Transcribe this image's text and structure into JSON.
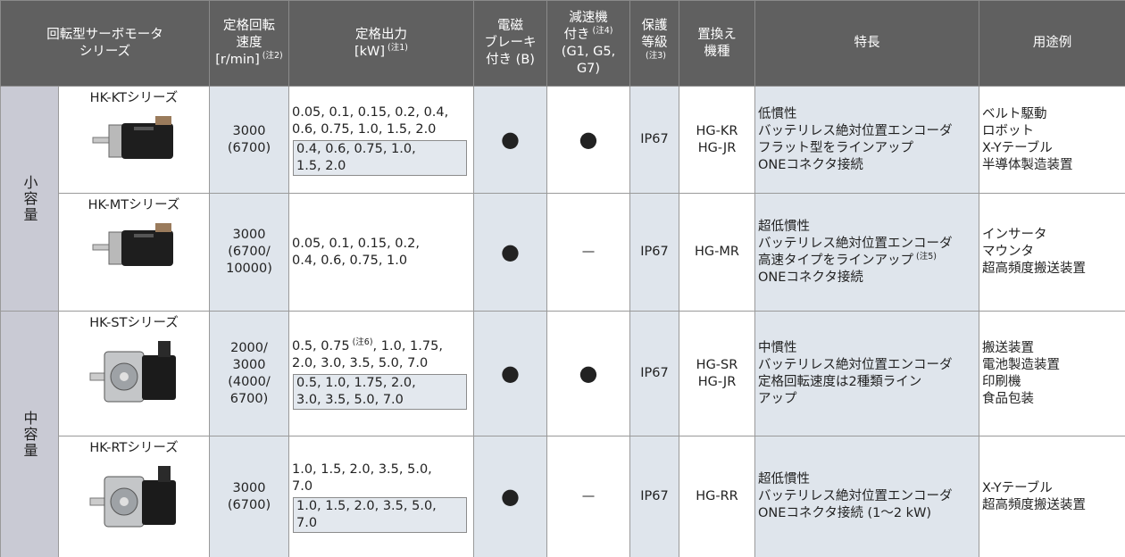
{
  "header": [
    {
      "lines": [
        "回転型サーボモータ",
        "シリーズ"
      ]
    },
    {
      "lines": [
        "定格回転",
        "速度",
        [
          "[r/min]",
          {
            "note": "(注2)"
          }
        ]
      ]
    },
    {
      "lines": [
        "定格出力",
        [
          "[kW]",
          {
            "note": "(注1)"
          }
        ]
      ]
    },
    {
      "lines": [
        "電磁",
        "ブレーキ",
        "付き (B)"
      ]
    },
    {
      "lines": [
        "減速機",
        [
          "付き",
          {
            "note": "(注4)"
          }
        ],
        "(G1, G5, G7)"
      ]
    },
    {
      "lines": [
        "保護",
        "等級",
        [
          {
            "note": "(注3)"
          }
        ]
      ]
    },
    {
      "lines": [
        "置換え",
        "機種"
      ]
    },
    {
      "lines": [
        "特長"
      ]
    },
    {
      "lines": [
        "用途例"
      ]
    }
  ],
  "groups": [
    {
      "label": "小容量",
      "rows": [
        {
          "series": "HK-KTシリーズ",
          "speed": [
            "3000",
            "(6700)"
          ],
          "output": [
            "0.05, 0.1, 0.15, 0.2, 0.4,",
            "0.6, 0.75, 1.0, 1.5, 2.0"
          ],
          "output_boxed": [
            "0.4, 0.6, 0.75, 1.0,",
            "1.5, 2.0"
          ],
          "brake": "●",
          "reducer": "●",
          "protection": "IP67",
          "replacement": [
            "HG-KR",
            "HG-JR"
          ],
          "features": [
            "低慣性",
            "バッテリレス絶対位置エンコーダ",
            "フラット型をラインアップ",
            "ONEコネクタ接続"
          ],
          "uses": [
            "ベルト駆動",
            "ロボット",
            "X-Yテーブル",
            "半導体製造装置"
          ]
        },
        {
          "series": "HK-MTシリーズ",
          "speed": [
            "3000",
            "(6700/",
            "10000)"
          ],
          "output": [
            "0.05, 0.1, 0.15, 0.2,",
            "0.4, 0.6, 0.75, 1.0"
          ],
          "brake": "●",
          "reducer": "—",
          "protection": "IP67",
          "replacement": [
            "HG-MR"
          ],
          "features": [
            "超低慣性",
            "バッテリレス絶対位置エンコーダ",
            [
              "高速タイプをラインアップ",
              {
                "note": "(注5)"
              }
            ],
            "ONEコネクタ接続"
          ],
          "uses": [
            "インサータ",
            "マウンタ",
            "超高頻度搬送装置"
          ]
        }
      ]
    },
    {
      "label": "中容量",
      "rows": [
        {
          "series": "HK-STシリーズ",
          "speed": [
            "2000/",
            "3000",
            "(4000/",
            "6700)"
          ],
          "output": [
            [
              "0.5, 0.75",
              {
                "note": "(注6)"
              },
              ", 1.0, 1.75,"
            ],
            "2.0, 3.0, 3.5, 5.0, 7.0"
          ],
          "output_boxed": [
            "0.5, 1.0, 1.75, 2.0,",
            "3.0, 3.5, 5.0, 7.0"
          ],
          "brake": "●",
          "reducer": "●",
          "protection": "IP67",
          "replacement": [
            "HG-SR",
            "HG-JR"
          ],
          "features": [
            "中慣性",
            "バッテリレス絶対位置エンコーダ",
            "定格回転速度は2種類ライン",
            "アップ"
          ],
          "uses": [
            "搬送装置",
            "電池製造装置",
            "印刷機",
            "食品包装"
          ]
        },
        {
          "series": "HK-RTシリーズ",
          "speed": [
            "3000",
            "(6700)"
          ],
          "output": [
            "1.0, 1.5, 2.0, 3.5, 5.0,",
            "7.0"
          ],
          "output_boxed": [
            "1.0, 1.5, 2.0, 3.5, 5.0,",
            "7.0"
          ],
          "brake": "●",
          "reducer": "—",
          "protection": "IP67",
          "replacement": [
            "HG-RR"
          ],
          "features": [
            "超低慣性",
            "バッテリレス絶対位置エンコーダ",
            "ONEコネクタ接続 (1〜2 kW)"
          ],
          "uses": [
            "X-Yテーブル",
            "超高頻度搬送装置"
          ]
        }
      ]
    }
  ]
}
